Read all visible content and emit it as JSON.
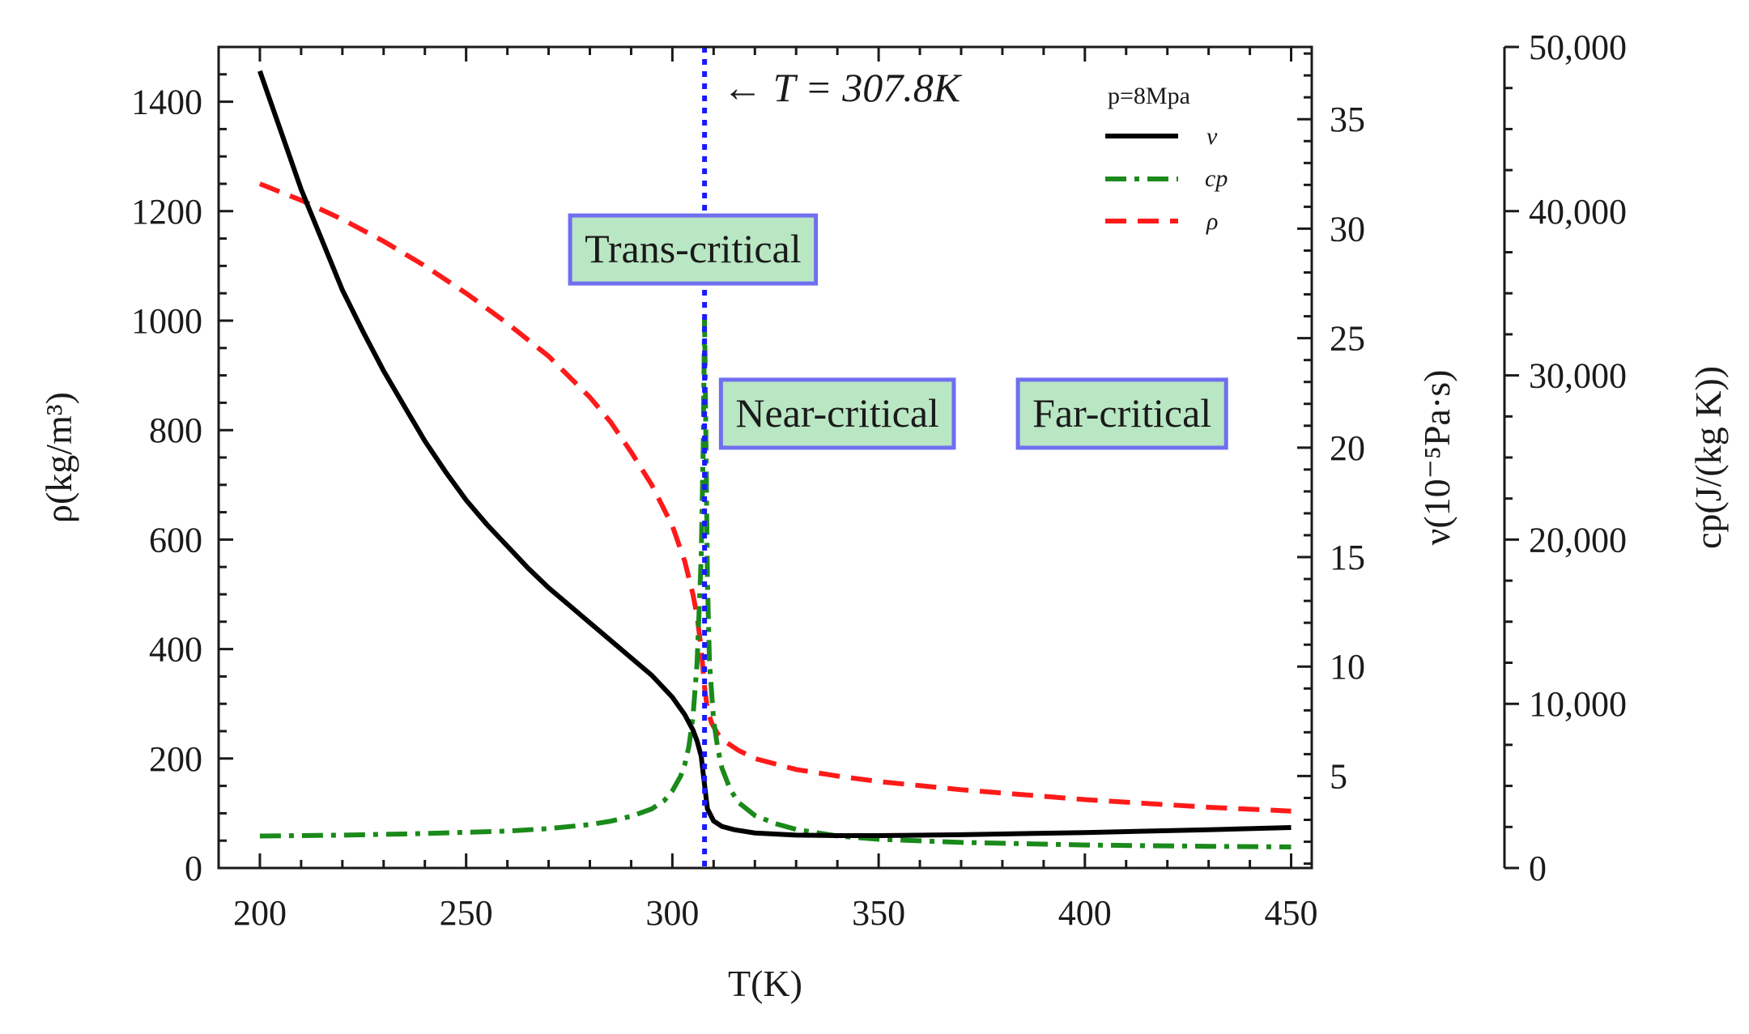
{
  "chart_data": {
    "type": "line",
    "x_axis": {
      "label": "T(K)",
      "lim": [
        190,
        455
      ],
      "ticks": [
        200,
        250,
        300,
        350,
        400,
        450
      ],
      "minor_step": 10
    },
    "y_left": {
      "label": "ρ(kg/m³)",
      "lim": [
        0,
        1500
      ],
      "ticks": [
        0,
        200,
        400,
        600,
        800,
        1000,
        1200,
        1400
      ],
      "minor_step": 50
    },
    "y_right1": {
      "label": "ν(10⁻⁵Pa·s)",
      "lim": [
        0.8,
        38.3
      ],
      "ticks": [
        5,
        10,
        15,
        20,
        25,
        30,
        35
      ],
      "minor_step": 1
    },
    "y_right2": {
      "label": "cp(J/(kg K))",
      "lim": [
        0,
        50000
      ],
      "ticks": [
        0,
        10000,
        20000,
        30000,
        40000,
        50000
      ],
      "tick_labels": [
        "0",
        "10,000",
        "20,000",
        "30,000",
        "40,000",
        "50,000"
      ],
      "minor_step": 2500
    },
    "critical_line": {
      "x": 307.8,
      "label": "← T = 307.8K",
      "color": "#1a1aff"
    },
    "legend": {
      "title": "p=8Mpa",
      "entries": [
        {
          "symbol": "ν",
          "color": "#000000",
          "style": "solid"
        },
        {
          "symbol": "cp",
          "color": "#1a8a1a",
          "style": "dashdot"
        },
        {
          "symbol": "ρ",
          "color": "#ff1a1a",
          "style": "dashed"
        }
      ]
    },
    "regions": [
      {
        "label": "Trans-critical",
        "x_center": 305,
        "y_rho": 1130
      },
      {
        "label": "Near-critical",
        "x_center": 340,
        "y_rho": 830
      },
      {
        "label": "Far-critical",
        "x_center": 409,
        "y_rho": 830
      }
    ],
    "series": [
      {
        "name": "ν",
        "axis": "y_right1",
        "color": "#000000",
        "style": "solid",
        "x": [
          200,
          205,
          210,
          215,
          220,
          225,
          230,
          235,
          240,
          245,
          250,
          255,
          260,
          265,
          270,
          275,
          280,
          285,
          290,
          295,
          300,
          303,
          305,
          306,
          307,
          307.8,
          308.5,
          310,
          312,
          315,
          320,
          330,
          340,
          350,
          370,
          400,
          430,
          450
        ],
        "values": [
          37.2,
          34.5,
          31.8,
          29.5,
          27.2,
          25.3,
          23.5,
          21.9,
          20.3,
          18.9,
          17.6,
          16.5,
          15.5,
          14.5,
          13.6,
          12.8,
          12.0,
          11.2,
          10.4,
          9.6,
          8.6,
          7.8,
          7.1,
          6.6,
          5.9,
          4.6,
          3.5,
          2.95,
          2.7,
          2.55,
          2.4,
          2.3,
          2.28,
          2.28,
          2.32,
          2.42,
          2.55,
          2.65
        ]
      },
      {
        "name": "cp",
        "axis": "y_right2",
        "color": "#1a8a1a",
        "style": "dashdot",
        "x": [
          200,
          220,
          240,
          260,
          270,
          280,
          285,
          290,
          295,
          298,
          300,
          302,
          303,
          304,
          305,
          306,
          307,
          307.5,
          307.8,
          308.1,
          308.5,
          309,
          310,
          311,
          312,
          314,
          316,
          320,
          325,
          330,
          340,
          350,
          370,
          400,
          430,
          450
        ],
        "values": [
          1950,
          2000,
          2100,
          2250,
          2400,
          2650,
          2850,
          3150,
          3600,
          4100,
          4700,
          5600,
          6300,
          7400,
          9200,
          12500,
          19000,
          26000,
          33500,
          27000,
          17500,
          12500,
          9000,
          7300,
          6100,
          4800,
          4000,
          3200,
          2700,
          2350,
          1950,
          1750,
          1560,
          1400,
          1320,
          1280
        ]
      },
      {
        "name": "ρ",
        "axis": "y_left",
        "color": "#ff1a1a",
        "style": "dashed",
        "x": [
          200,
          210,
          220,
          230,
          240,
          250,
          260,
          270,
          280,
          285,
          290,
          295,
          300,
          303,
          305,
          306,
          307,
          307.8,
          308.5,
          309.5,
          311,
          313,
          316,
          320,
          330,
          340,
          350,
          370,
          400,
          430,
          450
        ],
        "values": [
          1250,
          1220,
          1185,
          1145,
          1100,
          1050,
          995,
          935,
          860,
          815,
          760,
          700,
          625,
          560,
          500,
          460,
          400,
          330,
          290,
          265,
          245,
          230,
          215,
          200,
          180,
          168,
          158,
          143,
          125,
          111,
          104
        ]
      }
    ]
  }
}
